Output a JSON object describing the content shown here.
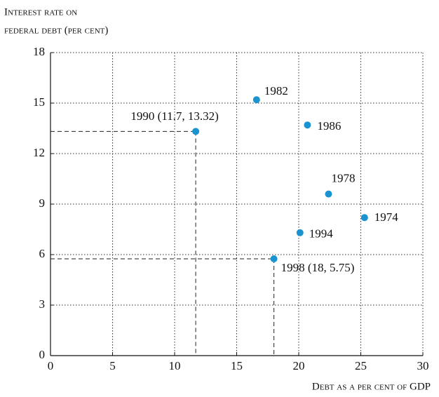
{
  "chart_data": {
    "type": "scatter",
    "y_label": [
      "Interest rate on",
      "federal debt (per cent)"
    ],
    "x_label": "Debt as a per cent of GDP",
    "labels": [
      "1974",
      "1978",
      "1982",
      "1986",
      "1990 (11.7, 13.32)",
      "1994",
      "1998 (18, 5.75)"
    ],
    "x": [
      25.3,
      22.4,
      16.6,
      20.7,
      11.7,
      20.1,
      18
    ],
    "y": [
      8.2,
      9.6,
      15.2,
      13.7,
      13.32,
      7.3,
      5.75
    ],
    "guide": [
      false,
      false,
      false,
      false,
      true,
      false,
      true
    ],
    "color": "#1a93d0",
    "xlim": [
      0,
      30
    ],
    "xticks": [
      0,
      5,
      10,
      15,
      20,
      25,
      30
    ],
    "ylim": [
      0,
      18
    ],
    "yticks": [
      0,
      3,
      6,
      9,
      12,
      15,
      18
    ],
    "grid": true
  }
}
